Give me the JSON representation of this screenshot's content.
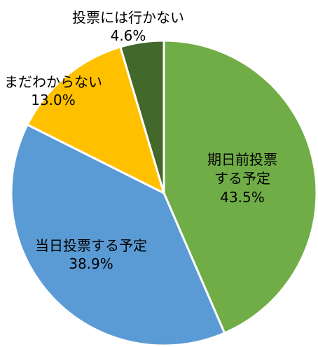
{
  "chart_data": {
    "type": "pie",
    "slices": [
      {
        "label": "期日前投票する予定",
        "label_lines": [
          "期日前投票",
          "する予定"
        ],
        "value_text": "43.5%",
        "value": 43.5,
        "color": "#70ad47"
      },
      {
        "label": "当日投票する予定",
        "label_lines": [
          "当日投票する予定"
        ],
        "value_text": "38.9%",
        "value": 38.9,
        "color": "#5b9bd5"
      },
      {
        "label": "まだわからない",
        "label_lines": [
          "まだわからない"
        ],
        "value_text": "13.0%",
        "value": 13.0,
        "color": "#ffc000"
      },
      {
        "label": "投票には行かない",
        "label_lines": [
          "投票には行かない"
        ],
        "value_text": "4.6%",
        "value": 4.6,
        "color": "#43682b"
      }
    ],
    "start_angle": "12 o'clock",
    "direction": "clockwise",
    "legend": "none"
  }
}
